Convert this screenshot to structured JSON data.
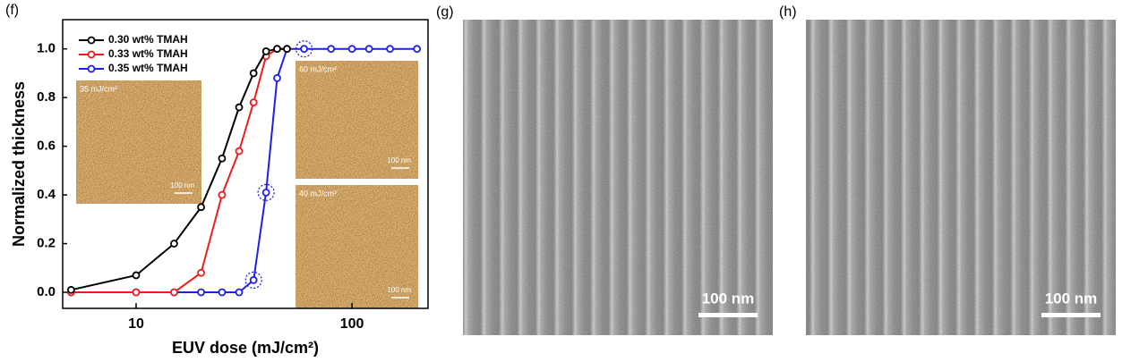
{
  "chart_data": {
    "type": "line",
    "panel_label": "(f)",
    "x_label": "EUV dose (mJ/cm²)",
    "y_label": "Normalized thickness",
    "xscale": "log",
    "xlim": [
      4.57,
      225
    ],
    "ylim": [
      -0.066,
      1.12
    ],
    "xticks": [
      10,
      100
    ],
    "yticks": [
      {
        "value": 0,
        "label": "0.0"
      },
      0.2,
      0.4,
      0.6,
      0.8,
      {
        "value": 1,
        "label": "1.0"
      }
    ],
    "x": [
      5,
      10,
      15,
      20,
      25,
      30,
      35,
      40,
      45,
      50,
      60,
      80,
      100,
      120,
      150,
      200
    ],
    "series": [
      {
        "name": "0.30 wt% TMAH",
        "color": "#000000",
        "values": [
          0.01,
          0.07,
          0.2,
          0.35,
          0.55,
          0.76,
          0.9,
          0.99,
          1.0,
          1.0,
          null,
          null,
          null,
          null,
          null,
          null
        ]
      },
      {
        "name": "0.33 wt% TMAH",
        "color": "#ee1c1c",
        "values": [
          0,
          0,
          0,
          0.08,
          0.4,
          0.58,
          0.78,
          0.97,
          1.0,
          1.0,
          null,
          null,
          null,
          null,
          null,
          null
        ]
      },
      {
        "name": "0.35 wt% TMAH",
        "color": "#1f1fe6",
        "values": [
          0,
          0,
          0,
          0,
          0,
          0,
          0.05,
          0.41,
          0.88,
          1.0,
          1.0,
          1.0,
          1.0,
          1.0,
          1.0,
          1.0
        ]
      }
    ],
    "insets": [
      {
        "label": "35 mJ/cm²",
        "scale_bar": "100 nm"
      },
      {
        "label": "60 mJ/cm²",
        "scale_bar": "100 nm"
      },
      {
        "label": "40 mJ/cm²",
        "scale_bar": "100 nm"
      }
    ]
  },
  "images": [
    {
      "panel_label": "(g)",
      "scale_bar": "100 nm"
    },
    {
      "panel_label": "(h)",
      "scale_bar": "100 nm"
    }
  ]
}
